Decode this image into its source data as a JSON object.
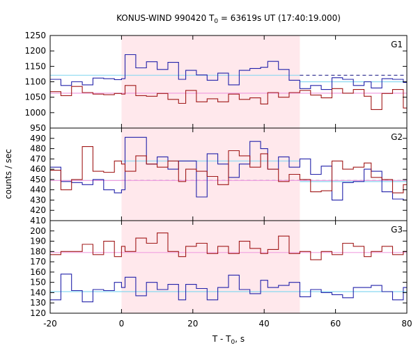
{
  "chart_data": {
    "type": "line",
    "title": "KONUS-WIND 990420 T",
    "title_sub": "0",
    "title_rest": " = 63619s UT (17:40:19.000)",
    "xlabel": "T - T",
    "xlabel_sub": "0",
    "xlabel_rest": ", s",
    "ylabel": "counts / sec",
    "xlim": [
      -20,
      80
    ],
    "x_ticks": [
      "-20",
      "0",
      "20",
      "40",
      "60",
      "80"
    ],
    "x_tick_values": [
      -20,
      0,
      20,
      40,
      60,
      80
    ],
    "shaded_interval": [
      0,
      50
    ],
    "colors": {
      "shade": "#ffe8ec",
      "red": "#a01818",
      "blue": "#2222aa",
      "cyan": "#88d8f0",
      "pink": "#f0a0e0",
      "dash": "#222288"
    },
    "panels": [
      {
        "name": "G1",
        "ylim": [
          950,
          1250
        ],
        "y_ticks": [
          950,
          1000,
          1050,
          1100,
          1150,
          1200,
          1250
        ],
        "y_tick_labels": [
          "950",
          "1000",
          "1050",
          "1100",
          "1150",
          "1200",
          "1250"
        ],
        "series": [
          {
            "color": "blue",
            "bin_edges": [
              -20,
              -17,
              -14,
              -11,
              -8,
              -5,
              -2,
              0,
              1,
              4,
              7,
              10,
              13,
              16,
              18,
              21,
              24,
              27,
              30,
              33,
              36,
              39,
              41,
              44,
              47,
              50,
              53,
              56,
              59,
              62,
              65,
              68,
              70,
              73,
              76,
              79,
              80
            ],
            "values": [
              1108,
              1088,
              1100,
              1090,
              1112,
              1110,
              1107,
              1110,
              1188,
              1145,
              1165,
              1140,
              1163,
              1108,
              1137,
              1122,
              1105,
              1128,
              1090,
              1137,
              1143,
              1147,
              1166,
              1140,
              1105,
              1078,
              1088,
              1075,
              1113,
              1108,
              1088,
              1100,
              1080,
              1110,
              1108,
              1098
            ]
          },
          {
            "color": "red",
            "bin_edges": [
              -20,
              -17,
              -14,
              -11,
              -8,
              -5,
              -2,
              0,
              1,
              4,
              7,
              10,
              13,
              16,
              18,
              21,
              24,
              27,
              30,
              33,
              36,
              39,
              41,
              44,
              47,
              50,
              53,
              56,
              59,
              62,
              65,
              68,
              70,
              73,
              76,
              79,
              80
            ],
            "values": [
              1068,
              1055,
              1085,
              1065,
              1060,
              1058,
              1062,
              1060,
              1088,
              1055,
              1053,
              1062,
              1043,
              1030,
              1072,
              1035,
              1045,
              1035,
              1060,
              1043,
              1048,
              1028,
              1065,
              1050,
              1065,
              1072,
              1057,
              1048,
              1078,
              1063,
              1075,
              1053,
              1010,
              1062,
              1075,
              1015
            ]
          }
        ],
        "levels": [
          {
            "color": "cyan",
            "style": "solid",
            "x": [
              -20,
              50
            ],
            "y": 1121
          },
          {
            "color": "dash",
            "style": "dashed",
            "x": [
              50,
              80
            ],
            "y": 1121
          },
          {
            "color": "cyan",
            "style": "solid",
            "x": [
              50,
              80
            ],
            "y": 1100
          },
          {
            "color": "pink",
            "style": "solid",
            "x": [
              -20,
              80
            ],
            "y": 1063
          }
        ]
      },
      {
        "name": "G2",
        "ylim": [
          410,
          500
        ],
        "y_ticks": [
          410,
          420,
          430,
          440,
          450,
          460,
          470,
          480,
          490
        ],
        "y_tick_labels": [
          "410",
          "420",
          "430",
          "440",
          "450",
          "460",
          "470",
          "480",
          "490"
        ],
        "series": [
          {
            "color": "blue",
            "bin_edges": [
              -20,
              -17,
              -14,
              -11,
              -8,
              -5,
              -2,
              0,
              1,
              4,
              7,
              10,
              13,
              16,
              18,
              21,
              24,
              27,
              30,
              33,
              36,
              39,
              41,
              44,
              47,
              50,
              53,
              56,
              59,
              62,
              65,
              68,
              70,
              73,
              76,
              79,
              80
            ],
            "values": [
              462,
              448,
              447,
              445,
              450,
              440,
              437,
              440,
              491,
              491,
              465,
              472,
              460,
              468,
              468,
              433,
              475,
              465,
              452,
              465,
              487,
              480,
              460,
              472,
              462,
              470,
              455,
              463,
              430,
              447,
              448,
              460,
              458,
              438,
              431,
              430
            ],
            "link_to_previous": false
          },
          {
            "color": "red",
            "bin_edges": [
              -20,
              -17,
              -14,
              -11,
              -8,
              -5,
              -2,
              0,
              1,
              4,
              7,
              10,
              13,
              16,
              18,
              21,
              24,
              27,
              30,
              33,
              36,
              39,
              41,
              44,
              47,
              50,
              53,
              56,
              59,
              62,
              65,
              68,
              70,
              73,
              76,
              79,
              80
            ],
            "values": [
              459,
              440,
              450,
              482,
              458,
              457,
              468,
              465,
              458,
              473,
              465,
              462,
              468,
              448,
              460,
              458,
              453,
              445,
              478,
              473,
              462,
              475,
              460,
              448,
              455,
              450,
              438,
              439,
              468,
              460,
              462,
              466,
              452,
              450,
              437,
              445
            ]
          }
        ],
        "levels": [
          {
            "color": "cyan",
            "style": "solid",
            "x": [
              -20,
              0
            ],
            "y": 449
          },
          {
            "color": "cyan",
            "style": "solid",
            "x": [
              0,
              50
            ],
            "y": 468
          },
          {
            "color": "dash",
            "style": "dashed",
            "x": [
              0,
              80
            ],
            "y": 449
          },
          {
            "color": "cyan",
            "style": "solid",
            "x": [
              50,
              80
            ],
            "y": 448
          },
          {
            "color": "pink",
            "style": "solid",
            "x": [
              -20,
              80
            ],
            "y": 449
          }
        ]
      },
      {
        "name": "G3",
        "ylim": [
          120,
          210
        ],
        "y_ticks": [
          120,
          130,
          140,
          150,
          160,
          170,
          180,
          190,
          200
        ],
        "y_tick_labels": [
          "120",
          "130",
          "140",
          "150",
          "160",
          "170",
          "180",
          "190",
          "200"
        ],
        "series": [
          {
            "color": "blue",
            "bin_edges": [
              -20,
              -17,
              -14,
              -11,
              -8,
              -5,
              -2,
              0,
              1,
              4,
              7,
              10,
              13,
              16,
              18,
              21,
              24,
              27,
              30,
              33,
              36,
              39,
              41,
              44,
              47,
              50,
              53,
              56,
              59,
              62,
              65,
              68,
              70,
              73,
              76,
              79,
              80
            ],
            "values": [
              133,
              158,
              142,
              131,
              143,
              142,
              150,
              145,
              155,
              137,
              150,
              143,
              148,
              133,
              148,
              144,
              133,
              145,
              157,
              143,
              139,
              152,
              145,
              147,
              150,
              136,
              143,
              140,
              138,
              135,
              145,
              145,
              147,
              141,
              133,
              145
            ]
          },
          {
            "color": "red",
            "bin_edges": [
              -20,
              -17,
              -14,
              -11,
              -8,
              -5,
              -2,
              0,
              1,
              4,
              7,
              10,
              13,
              16,
              18,
              21,
              24,
              27,
              30,
              33,
              36,
              39,
              41,
              44,
              47,
              50,
              53,
              56,
              59,
              62,
              65,
              68,
              70,
              73,
              76,
              79,
              80
            ],
            "values": [
              177,
              180,
              180,
              187,
              177,
              190,
              175,
              185,
              180,
              193,
              188,
              198,
              180,
              175,
              185,
              188,
              178,
              185,
              178,
              190,
              183,
              178,
              182,
              195,
              178,
              180,
              172,
              180,
              177,
              188,
              185,
              175,
              180,
              185,
              177,
              180
            ]
          }
        ],
        "levels": [
          {
            "color": "cyan",
            "style": "solid",
            "x": [
              -20,
              80
            ],
            "y": 141
          },
          {
            "color": "pink",
            "style": "solid",
            "x": [
              -20,
              80
            ],
            "y": 179
          }
        ]
      }
    ]
  }
}
